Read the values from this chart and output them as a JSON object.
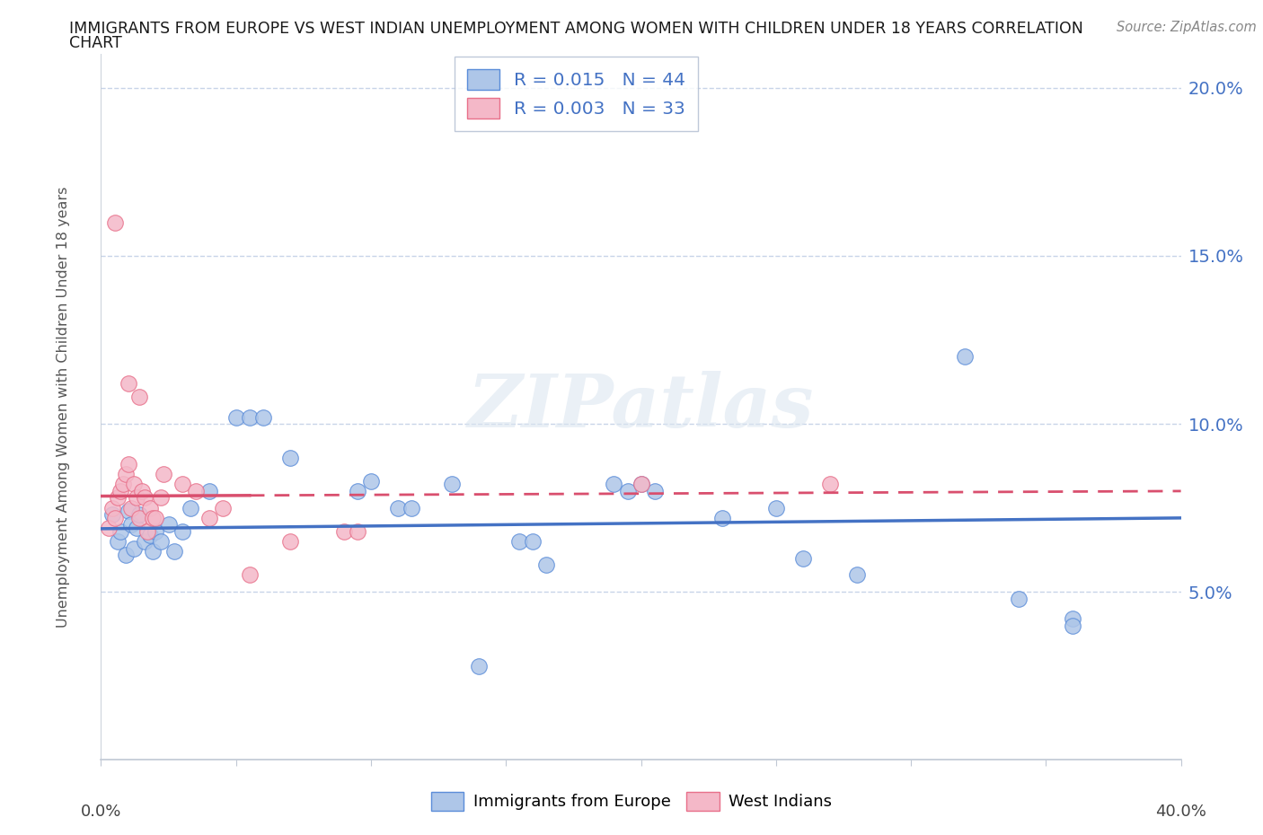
{
  "title_line1": "IMMIGRANTS FROM EUROPE VS WEST INDIAN UNEMPLOYMENT AMONG WOMEN WITH CHILDREN UNDER 18 YEARS CORRELATION",
  "title_line2": "CHART",
  "source": "Source: ZipAtlas.com",
  "ylabel": "Unemployment Among Women with Children Under 18 years",
  "xlim": [
    0.0,
    0.4
  ],
  "ylim": [
    0.0,
    0.21
  ],
  "yticks": [
    0.05,
    0.1,
    0.15,
    0.2
  ],
  "ytick_labels": [
    "5.0%",
    "10.0%",
    "15.0%",
    "20.0%"
  ],
  "xticks": [
    0.0,
    0.05,
    0.1,
    0.15,
    0.2,
    0.25,
    0.3,
    0.35,
    0.4
  ],
  "europe_R": 0.015,
  "europe_N": 44,
  "wi_R": 0.003,
  "wi_N": 33,
  "europe_color": "#aec6e8",
  "wi_color": "#f4b8c8",
  "europe_edge_color": "#5b8dd9",
  "wi_edge_color": "#e8708a",
  "europe_line_color": "#4472c4",
  "wi_line_color": "#d94f6e",
  "europe_scatter": [
    [
      0.004,
      0.073
    ],
    [
      0.006,
      0.065
    ],
    [
      0.007,
      0.068
    ],
    [
      0.009,
      0.061
    ],
    [
      0.01,
      0.074
    ],
    [
      0.011,
      0.07
    ],
    [
      0.012,
      0.063
    ],
    [
      0.013,
      0.069
    ],
    [
      0.014,
      0.073
    ],
    [
      0.016,
      0.065
    ],
    [
      0.018,
      0.067
    ],
    [
      0.019,
      0.062
    ],
    [
      0.02,
      0.068
    ],
    [
      0.022,
      0.065
    ],
    [
      0.025,
      0.07
    ],
    [
      0.027,
      0.062
    ],
    [
      0.03,
      0.068
    ],
    [
      0.033,
      0.075
    ],
    [
      0.04,
      0.08
    ],
    [
      0.05,
      0.102
    ],
    [
      0.055,
      0.102
    ],
    [
      0.06,
      0.102
    ],
    [
      0.07,
      0.09
    ],
    [
      0.095,
      0.08
    ],
    [
      0.1,
      0.083
    ],
    [
      0.11,
      0.075
    ],
    [
      0.115,
      0.075
    ],
    [
      0.13,
      0.082
    ],
    [
      0.155,
      0.065
    ],
    [
      0.16,
      0.065
    ],
    [
      0.165,
      0.058
    ],
    [
      0.19,
      0.082
    ],
    [
      0.195,
      0.08
    ],
    [
      0.2,
      0.082
    ],
    [
      0.205,
      0.08
    ],
    [
      0.23,
      0.072
    ],
    [
      0.25,
      0.075
    ],
    [
      0.26,
      0.06
    ],
    [
      0.28,
      0.055
    ],
    [
      0.32,
      0.12
    ],
    [
      0.34,
      0.048
    ],
    [
      0.36,
      0.042
    ],
    [
      0.14,
      0.028
    ],
    [
      0.36,
      0.04
    ]
  ],
  "wi_scatter": [
    [
      0.003,
      0.069
    ],
    [
      0.004,
      0.075
    ],
    [
      0.005,
      0.072
    ],
    [
      0.006,
      0.078
    ],
    [
      0.007,
      0.08
    ],
    [
      0.008,
      0.082
    ],
    [
      0.009,
      0.085
    ],
    [
      0.01,
      0.088
    ],
    [
      0.011,
      0.075
    ],
    [
      0.012,
      0.082
    ],
    [
      0.013,
      0.078
    ],
    [
      0.014,
      0.072
    ],
    [
      0.015,
      0.08
    ],
    [
      0.016,
      0.078
    ],
    [
      0.017,
      0.068
    ],
    [
      0.018,
      0.075
    ],
    [
      0.019,
      0.072
    ],
    [
      0.02,
      0.072
    ],
    [
      0.022,
      0.078
    ],
    [
      0.023,
      0.085
    ],
    [
      0.03,
      0.082
    ],
    [
      0.035,
      0.08
    ],
    [
      0.04,
      0.072
    ],
    [
      0.045,
      0.075
    ],
    [
      0.055,
      0.055
    ],
    [
      0.07,
      0.065
    ],
    [
      0.09,
      0.068
    ],
    [
      0.095,
      0.068
    ],
    [
      0.2,
      0.082
    ],
    [
      0.27,
      0.082
    ],
    [
      0.005,
      0.16
    ],
    [
      0.01,
      0.112
    ],
    [
      0.014,
      0.108
    ]
  ],
  "europe_trend": [
    0.0,
    0.4,
    0.0688,
    0.072
  ],
  "wi_trend": [
    0.0,
    0.4,
    0.0785,
    0.08
  ],
  "wi_trend_dashed_start": 0.055,
  "watermark": "ZIPatlas",
  "background_color": "#ffffff",
  "grid_color": "#c8d4e8",
  "axis_color": "#c0c8d4"
}
